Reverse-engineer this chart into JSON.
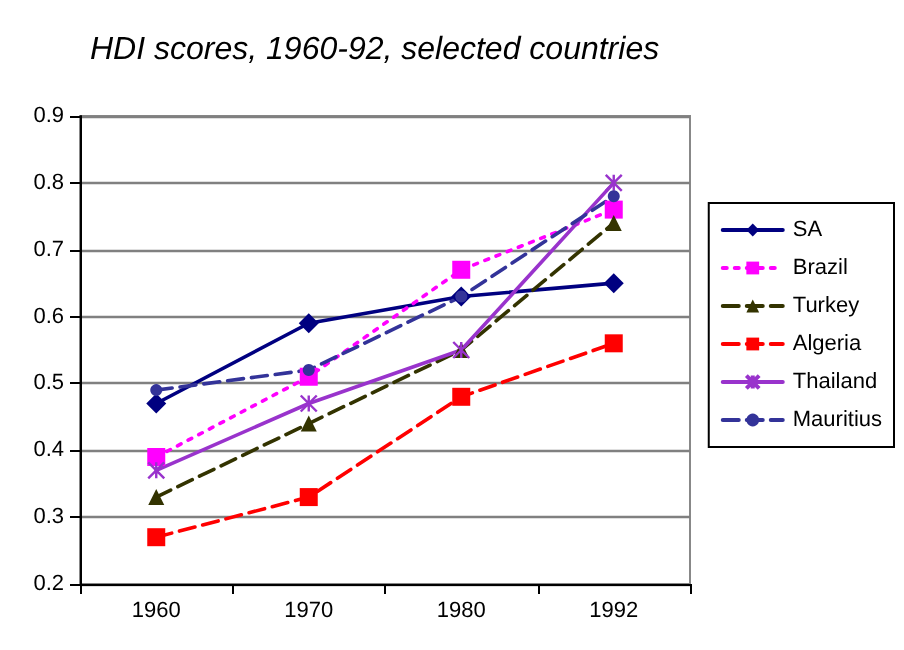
{
  "chart_data": {
    "type": "line",
    "title": "HDI scores, 1960-92, selected countries",
    "categories": [
      "1960",
      "1970",
      "1980",
      "1992"
    ],
    "series": [
      {
        "name": "SA",
        "color": "#000080",
        "values": [
          0.47,
          0.59,
          0.63,
          0.65
        ],
        "marker": "diamond",
        "line_style": "solid"
      },
      {
        "name": "Brazil",
        "color": "#ff00ff",
        "values": [
          0.39,
          0.51,
          0.67,
          0.76
        ],
        "marker": "square",
        "line_style": "dotted"
      },
      {
        "name": "Turkey",
        "color": "#333300",
        "values": [
          0.33,
          0.44,
          0.55,
          0.74
        ],
        "marker": "triangle",
        "line_style": "dashed"
      },
      {
        "name": "Algeria",
        "color": "#ff0000",
        "values": [
          0.27,
          0.33,
          0.48,
          0.56
        ],
        "marker": "square",
        "line_style": "dashed"
      },
      {
        "name": "Thailand",
        "color": "#9933cc",
        "values": [
          0.37,
          0.47,
          0.55,
          0.8
        ],
        "marker": "cross",
        "line_style": "solid"
      },
      {
        "name": "Mauritius",
        "color": "#333399",
        "values": [
          0.49,
          0.52,
          0.63,
          0.78
        ],
        "marker": "circle",
        "line_style": "dashed"
      }
    ],
    "ylim": [
      0.2,
      0.9
    ],
    "yticks": [
      0.2,
      0.3,
      0.4,
      0.5,
      0.6,
      0.7,
      0.8,
      0.9
    ],
    "grid": "y",
    "legend": "right"
  }
}
